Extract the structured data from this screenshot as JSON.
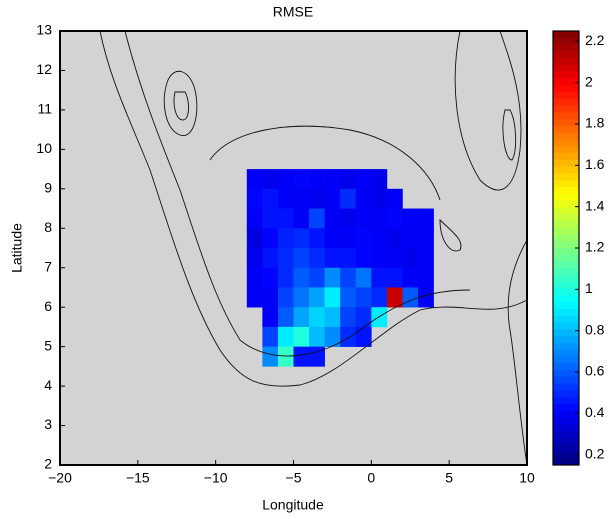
{
  "chart_data": {
    "type": "heatmap",
    "title": "RMSE",
    "x_label": "Longitude",
    "y_label": "Latitude",
    "xlim": [
      -20,
      10
    ],
    "ylim": [
      2,
      13
    ],
    "xticks": [
      {
        "value": -20,
        "label": "−20"
      },
      {
        "value": -15,
        "label": "−15"
      },
      {
        "value": -10,
        "label": "−10"
      },
      {
        "value": -5,
        "label": "−5"
      },
      0,
      5,
      10
    ],
    "yticks": [
      2,
      3,
      4,
      5,
      6,
      7,
      8,
      9,
      10,
      11,
      12,
      13
    ],
    "x": [
      -7.5,
      -6.5,
      -5.5,
      -4.5,
      -3.5,
      -2.5,
      -1.5,
      -0.5,
      0.5,
      1.5,
      2.5,
      3.5
    ],
    "y": [
      9.25,
      8.75,
      8.25,
      7.75,
      7.25,
      6.75,
      6.25,
      5.75,
      5.25,
      4.75
    ],
    "values": [
      [
        0.4,
        0.38,
        0.4,
        0.42,
        0.4,
        0.4,
        0.38,
        0.4,
        0.38,
        null,
        null,
        null
      ],
      [
        0.42,
        0.45,
        0.4,
        0.4,
        0.38,
        0.4,
        0.5,
        0.4,
        0.38,
        0.4,
        null,
        null
      ],
      [
        0.4,
        0.45,
        0.45,
        0.4,
        0.55,
        0.4,
        0.38,
        0.4,
        0.4,
        0.42,
        0.4,
        0.4
      ],
      [
        0.35,
        0.42,
        0.48,
        0.5,
        0.45,
        0.4,
        0.4,
        0.42,
        0.4,
        0.38,
        0.4,
        0.4
      ],
      [
        0.38,
        0.45,
        0.5,
        0.55,
        0.5,
        0.45,
        0.45,
        0.42,
        0.4,
        0.4,
        0.38,
        0.4
      ],
      [
        0.4,
        0.42,
        0.5,
        0.6,
        0.55,
        0.7,
        0.55,
        0.65,
        0.45,
        0.45,
        0.4,
        0.4
      ],
      [
        0.4,
        0.4,
        0.55,
        0.65,
        0.75,
        0.9,
        0.6,
        0.55,
        0.5,
        2.1,
        0.6,
        0.4
      ],
      [
        null,
        0.4,
        0.6,
        0.75,
        0.85,
        0.8,
        0.55,
        0.5,
        0.9,
        null,
        null,
        null
      ],
      [
        null,
        0.55,
        0.9,
        1.0,
        0.8,
        0.7,
        0.5,
        0.45,
        null,
        null,
        null,
        null
      ],
      [
        null,
        0.7,
        1.05,
        0.45,
        0.45,
        null,
        null,
        null,
        null,
        null,
        null,
        null
      ]
    ],
    "clim": [
      0.15,
      2.25
    ],
    "cticks": [
      0.2,
      0.4,
      0.6,
      0.8,
      1,
      1.2,
      1.4,
      1.6,
      1.8,
      2,
      2.2
    ],
    "colormap": "jet",
    "background": "#d3d3d3"
  }
}
